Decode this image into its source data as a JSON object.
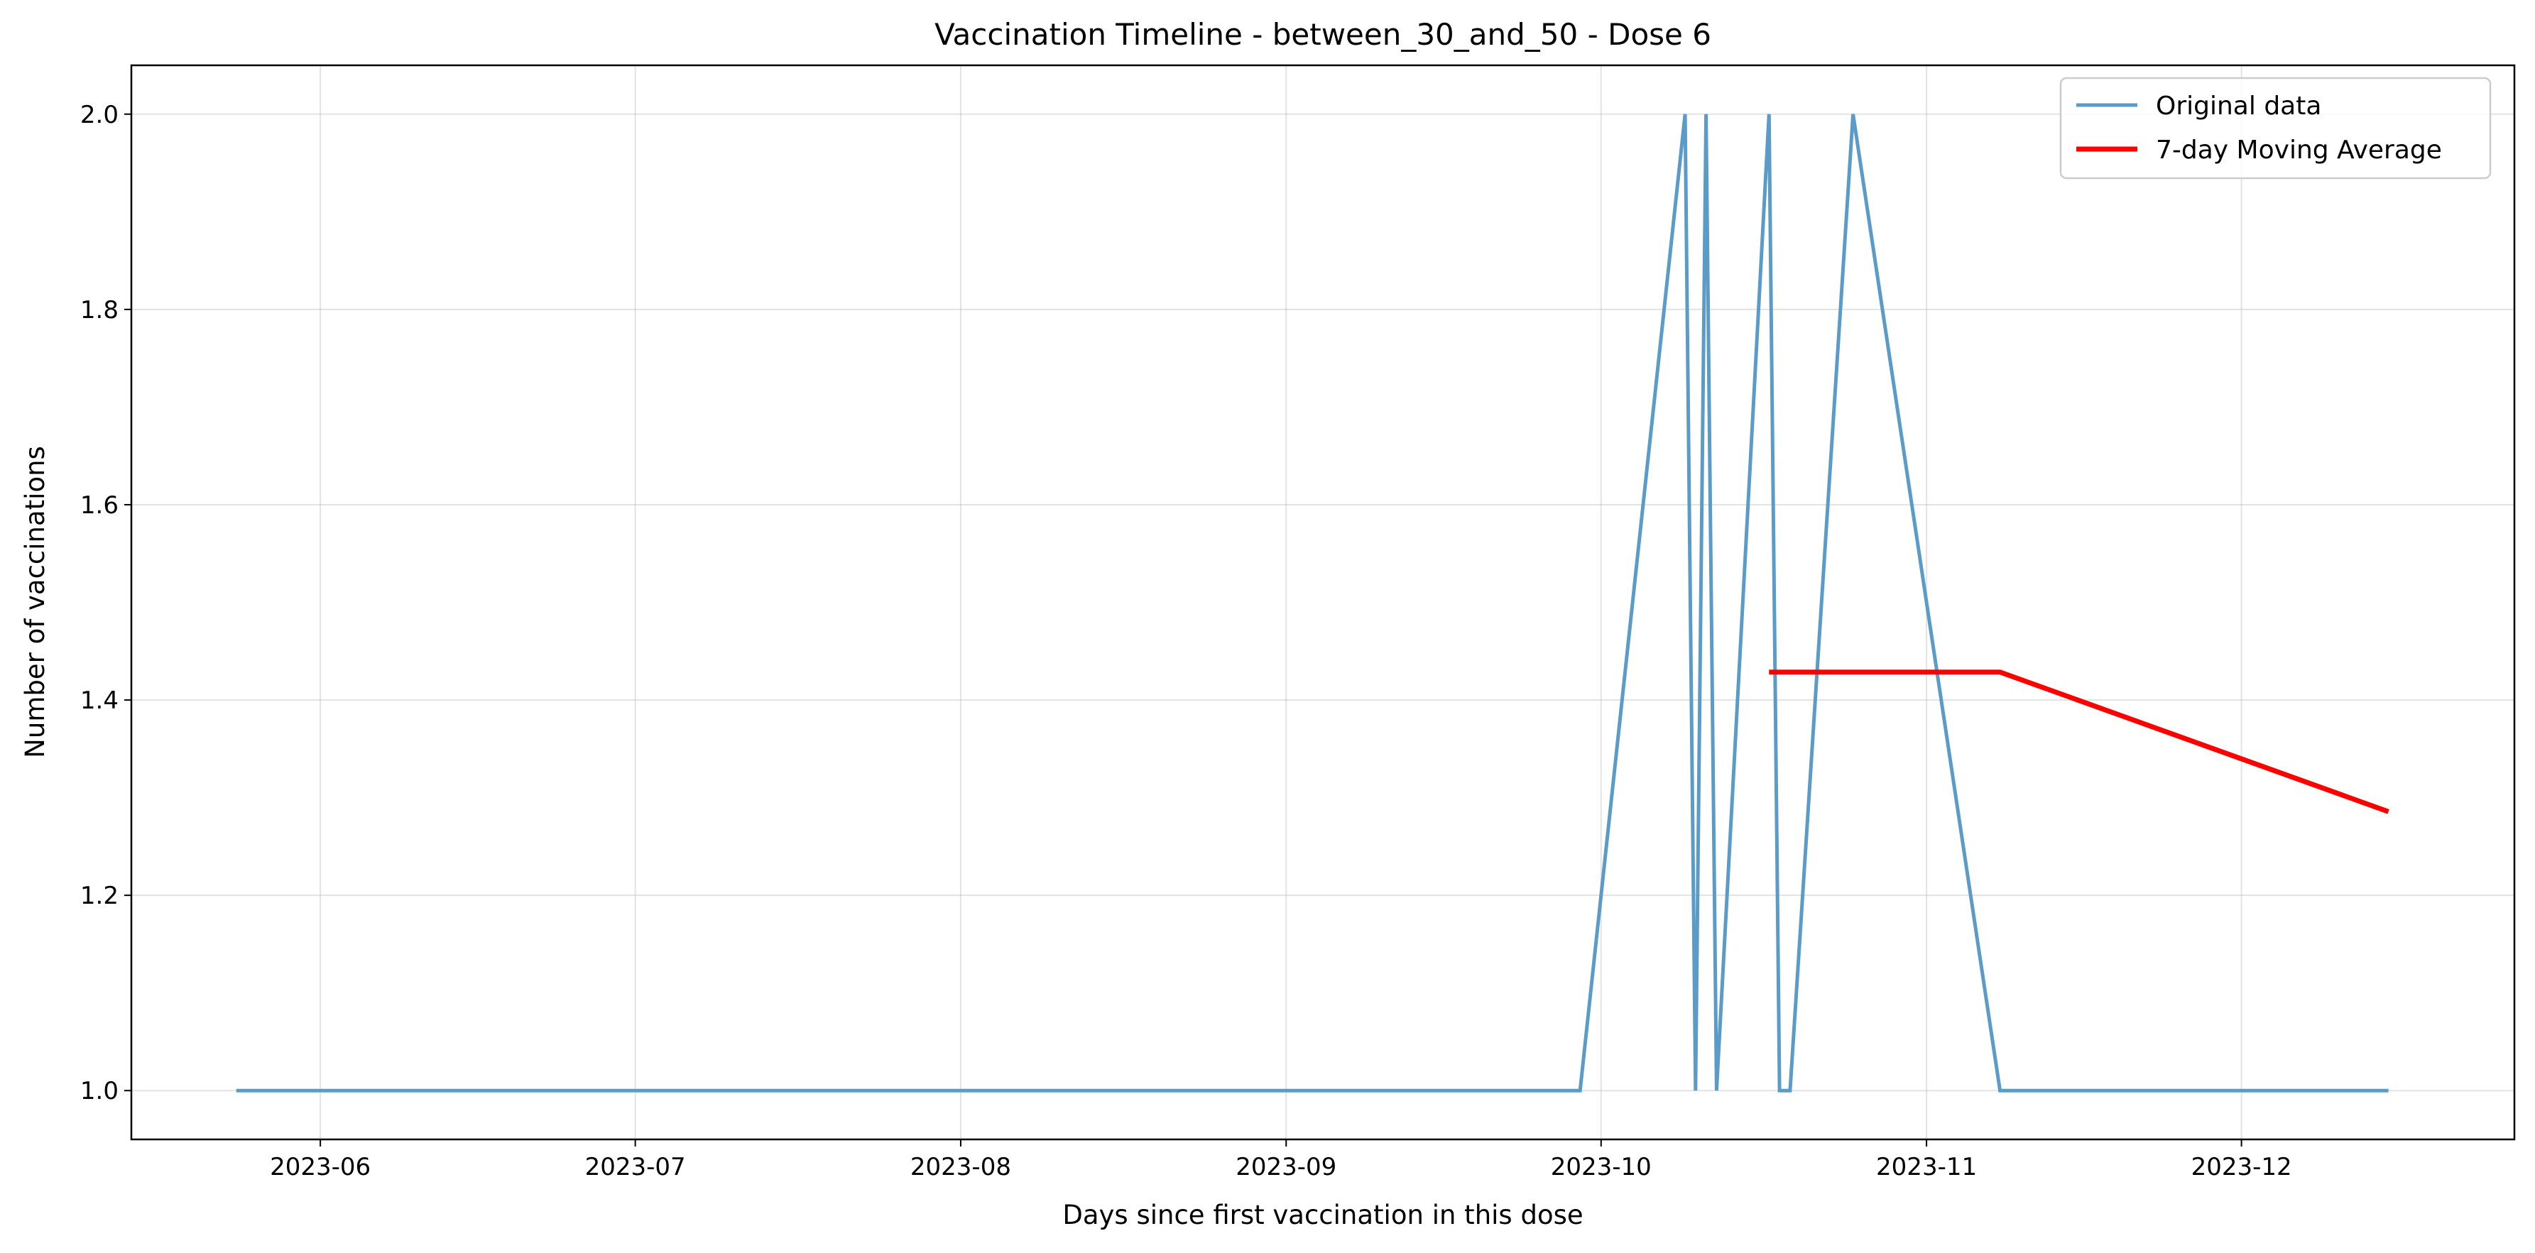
{
  "chart_data": {
    "type": "line",
    "title": "Vaccination Timeline - between_30_and_50 - Dose 6",
    "xlabel": "Days since first vaccination in this dose",
    "ylabel": "Number of vaccinations",
    "x_ticks": [
      "2023-06",
      "2023-07",
      "2023-08",
      "2023-09",
      "2023-10",
      "2023-11",
      "2023-12"
    ],
    "y_ticks": [
      "1.0",
      "1.2",
      "1.4",
      "1.6",
      "1.8",
      "2.0"
    ],
    "xlim": [
      "2023-05-14",
      "2023-12-27"
    ],
    "ylim": [
      0.95,
      2.05
    ],
    "grid": true,
    "legend_position": "top-right",
    "series": [
      {
        "name": "Original data",
        "color": "#5b9bc8",
        "points": [
          {
            "x": "2023-05-24",
            "y": 1
          },
          {
            "x": "2023-09-29",
            "y": 1
          },
          {
            "x": "2023-10-09",
            "y": 2
          },
          {
            "x": "2023-10-10",
            "y": 1
          },
          {
            "x": "2023-10-11",
            "y": 2
          },
          {
            "x": "2023-10-12",
            "y": 1
          },
          {
            "x": "2023-10-17",
            "y": 2
          },
          {
            "x": "2023-10-18",
            "y": 1
          },
          {
            "x": "2023-10-19",
            "y": 1
          },
          {
            "x": "2023-10-25",
            "y": 2
          },
          {
            "x": "2023-11-08",
            "y": 1
          },
          {
            "x": "2023-12-15",
            "y": 1
          }
        ]
      },
      {
        "name": "7-day Moving Average",
        "color": "#ff0000",
        "points": [
          {
            "x": "2023-10-17",
            "y": 1.4286
          },
          {
            "x": "2023-10-18",
            "y": 1.4286
          },
          {
            "x": "2023-10-19",
            "y": 1.4286
          },
          {
            "x": "2023-10-25",
            "y": 1.4286
          },
          {
            "x": "2023-11-08",
            "y": 1.4286
          },
          {
            "x": "2023-12-15",
            "y": 1.2857
          }
        ]
      }
    ]
  }
}
